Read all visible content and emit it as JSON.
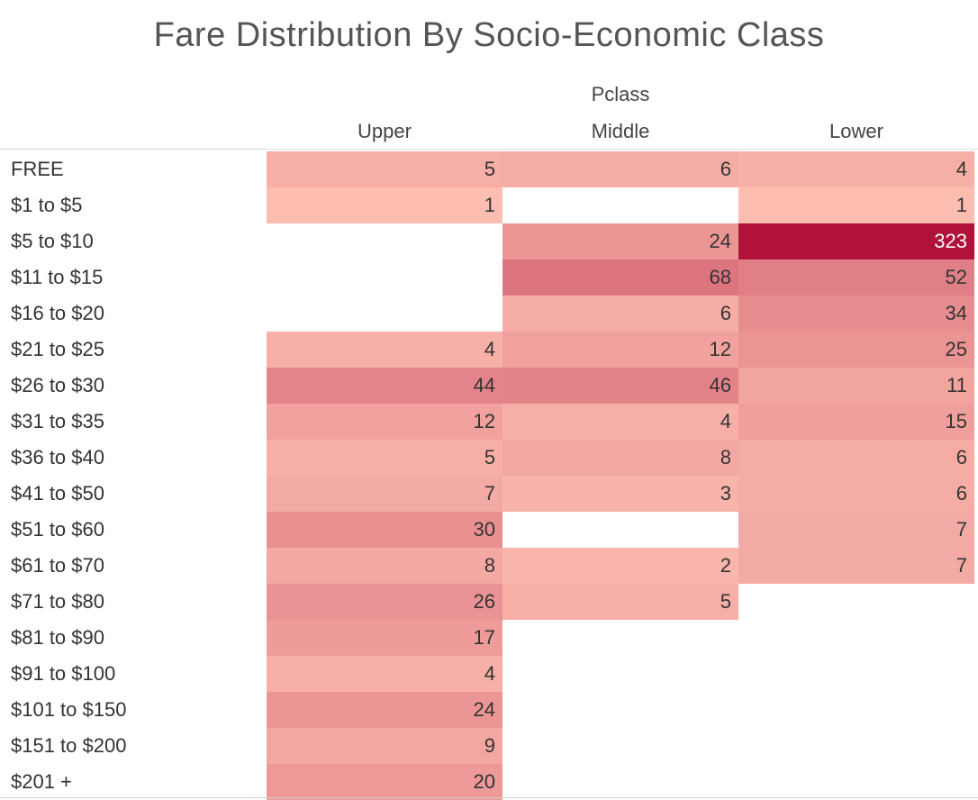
{
  "title": "Fare Distribution By Socio-Economic Class",
  "column_group_label": "Pclass",
  "chart_data": {
    "type": "heatmap",
    "title": "Fare Distribution By Socio-Economic Class",
    "column_field": "Pclass",
    "columns": [
      "Upper",
      "Middle",
      "Lower"
    ],
    "rows": [
      "FREE",
      "$1 to $5",
      "$5 to $10",
      "$11 to $15",
      "$16 to $20",
      "$21 to $25",
      "$26 to $30",
      "$31 to $35",
      "$36 to $40",
      "$41 to $50",
      "$51 to $60",
      "$61 to $70",
      "$71 to $80",
      "$81 to $90",
      "$91 to $100",
      "$101 to $150",
      "$151 to $200",
      "$201 +"
    ],
    "values": [
      [
        5,
        6,
        4
      ],
      [
        1,
        null,
        1
      ],
      [
        null,
        24,
        323
      ],
      [
        null,
        68,
        52
      ],
      [
        null,
        6,
        34
      ],
      [
        4,
        12,
        25
      ],
      [
        44,
        46,
        11
      ],
      [
        12,
        4,
        15
      ],
      [
        5,
        8,
        6
      ],
      [
        7,
        3,
        6
      ],
      [
        30,
        null,
        7
      ],
      [
        8,
        2,
        7
      ],
      [
        26,
        5,
        null
      ],
      [
        17,
        null,
        null
      ],
      [
        4,
        null,
        null
      ],
      [
        24,
        null,
        null
      ],
      [
        9,
        null,
        null
      ],
      [
        20,
        null,
        null
      ]
    ],
    "color_scale": {
      "min": 1,
      "max": 323,
      "low_color": "#fdbdb1",
      "high_color": "#b0123a"
    }
  }
}
